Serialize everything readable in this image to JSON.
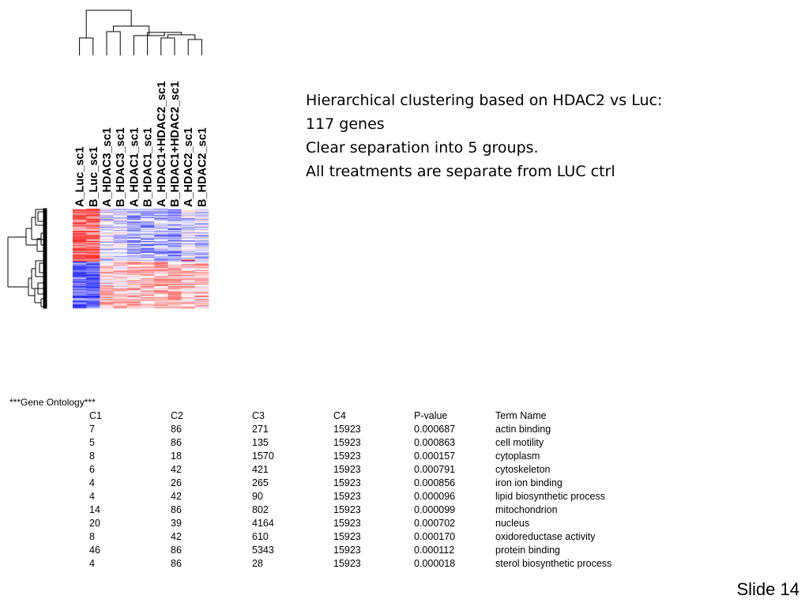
{
  "columns": [
    "A_Luc_sc1",
    "B_Luc_sc1",
    "A_HDAC3_sc1",
    "B_HDAC3_sc1",
    "A_HDAC1_sc1",
    "B_HDAC1_sc1",
    "A_HDAC1+HDAC2_sc1",
    "B_HDAC1+HDAC2_sc1",
    "A_HDAC2_sc1",
    "B_HDAC2_sc1"
  ],
  "heatmap": {
    "rows": 117,
    "colors": {
      "low": "#3333ff",
      "mid": "#ffffff",
      "high": "#ff3333",
      "extreme_high": "#cc0000"
    }
  },
  "notes": [
    "Hierarchical clustering based on HDAC2 vs Luc:",
    "117 genes",
    "Clear separation into 5 groups.",
    "All treatments are separate from LUC ctrl"
  ],
  "gene_ontology": {
    "title": "***Gene Ontology***",
    "headers": [
      "C1",
      "C2",
      "C3",
      "C4",
      "P-value",
      "Term Name"
    ],
    "rows": [
      [
        "7",
        "86",
        "271",
        "15923",
        "0.000687",
        "actin binding"
      ],
      [
        "5",
        "86",
        "135",
        "15923",
        "0.000863",
        "cell motility"
      ],
      [
        "8",
        "18",
        "1570",
        "15923",
        "0.000157",
        "cytoplasm"
      ],
      [
        "6",
        "42",
        "421",
        "15923",
        "0.000791",
        "cytoskeleton"
      ],
      [
        "4",
        "26",
        "265",
        "15923",
        "0.000856",
        "iron ion binding"
      ],
      [
        "4",
        "42",
        "90",
        "15923",
        "0.000096",
        "lipid biosynthetic process"
      ],
      [
        "14",
        "86",
        "802",
        "15923",
        "0.000099",
        "mitochondrion"
      ],
      [
        "20",
        "39",
        "4164",
        "15923",
        "0.000702",
        "nucleus"
      ],
      [
        "8",
        "42",
        "610",
        "15923",
        "0.000170",
        "oxidoreductase activity"
      ],
      [
        "46",
        "86",
        "5343",
        "15923",
        "0.000112",
        "protein binding"
      ],
      [
        "4",
        "86",
        "28",
        "15923",
        "0.000018",
        "sterol biosynthetic process"
      ]
    ]
  },
  "slide_number": "Slide 14"
}
